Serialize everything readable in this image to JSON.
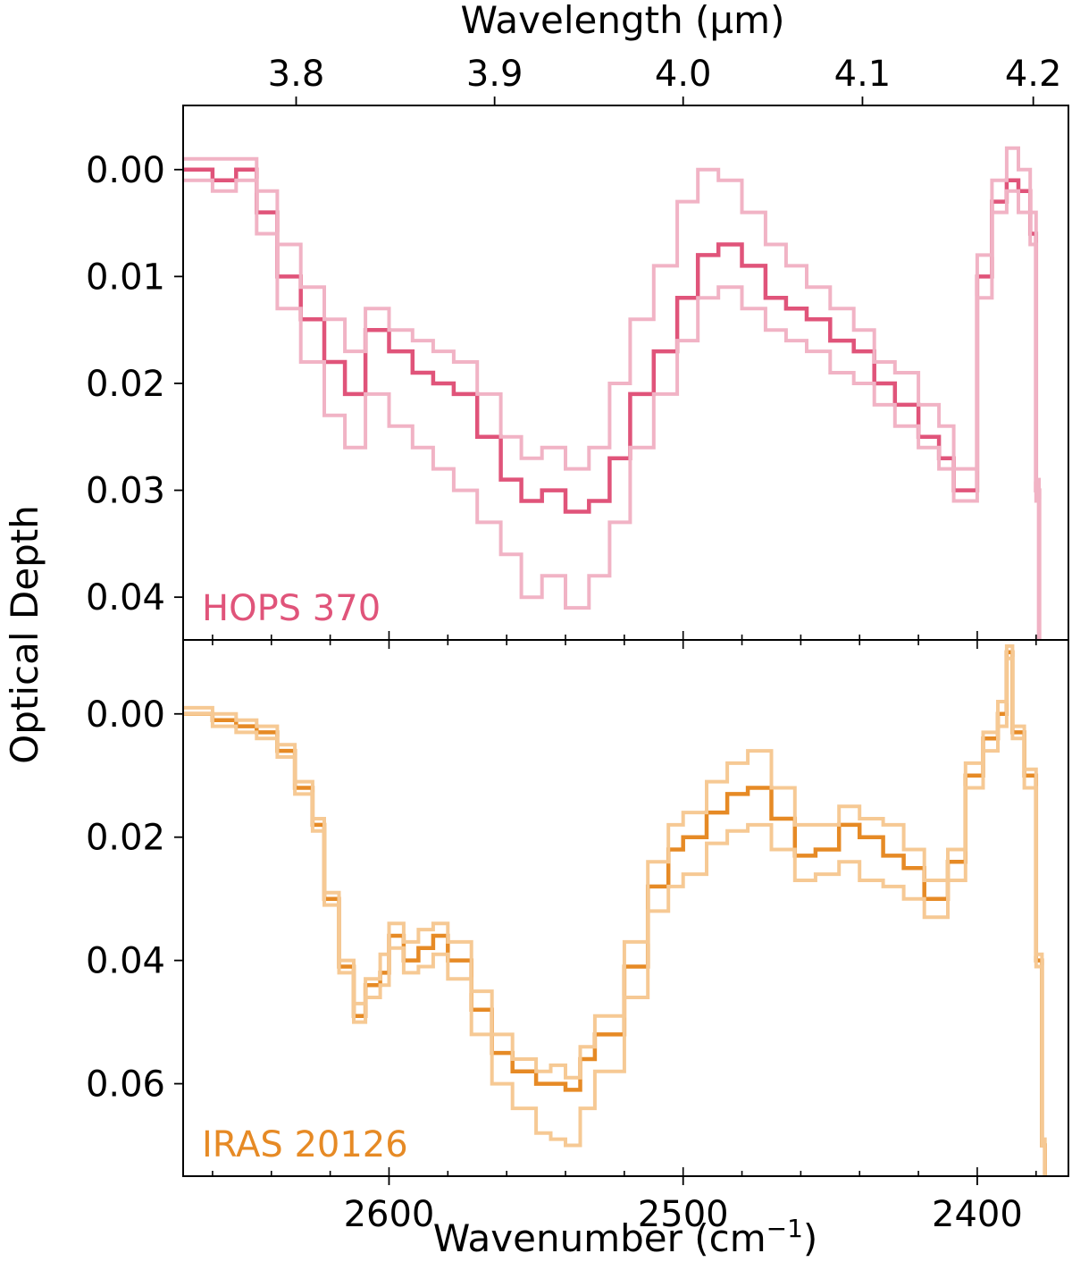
{
  "figure": {
    "ylabel": "Optical Depth",
    "top_xlabel": "Wavelength (µm)",
    "bottom_xlabel_prefix": "Wavenumber (cm",
    "bottom_xlabel_sup": "−1",
    "bottom_xlabel_suffix": ")"
  },
  "chart_data": [
    {
      "type": "line",
      "panel_label": "HOPS 370",
      "xlabel": "Wavenumber (cm−1)",
      "top_xlabel": "Wavelength (µm)",
      "ylabel": "Optical Depth",
      "x_reversed": true,
      "y_inverted": true,
      "xlim": [
        2670,
        2369
      ],
      "ylim": [
        0.044,
        -0.006
      ],
      "x_ticks": [
        2600,
        2500,
        2400
      ],
      "x_tick_labels": [
        "2600",
        "2500",
        "2400"
      ],
      "top_ticks": [
        3.8,
        3.9,
        4.0,
        4.1,
        4.2
      ],
      "top_tick_labels": [
        "3.8",
        "3.9",
        "4.0",
        "4.1",
        "4.2"
      ],
      "y_ticks": [
        0.0,
        0.01,
        0.02,
        0.03,
        0.04
      ],
      "y_tick_labels": [
        "0.00",
        "0.01",
        "0.02",
        "0.03",
        "0.04"
      ],
      "colors": {
        "main": "#e0547a",
        "band": "#f1b3c5"
      },
      "x": [
        2670,
        2660,
        2652,
        2645,
        2638,
        2630,
        2622,
        2615,
        2608,
        2600,
        2592,
        2585,
        2578,
        2570,
        2562,
        2555,
        2548,
        2540,
        2532,
        2525,
        2518,
        2510,
        2502,
        2495,
        2488,
        2480,
        2472,
        2465,
        2458,
        2450,
        2442,
        2435,
        2428,
        2420,
        2413,
        2408,
        2400,
        2395,
        2390,
        2386,
        2382,
        2380,
        2379
      ],
      "series": [
        {
          "role": "main",
          "values": [
            0.0,
            0.001,
            0.0,
            0.004,
            0.01,
            0.014,
            0.018,
            0.021,
            0.015,
            0.017,
            0.019,
            0.02,
            0.021,
            0.025,
            0.029,
            0.031,
            0.03,
            0.032,
            0.031,
            0.027,
            0.021,
            0.017,
            0.012,
            0.008,
            0.007,
            0.009,
            0.012,
            0.013,
            0.014,
            0.016,
            0.017,
            0.02,
            0.022,
            0.025,
            0.027,
            0.03,
            0.01,
            0.003,
            0.001,
            0.002,
            0.006,
            0.03,
            0.045
          ]
        },
        {
          "role": "upper",
          "values": [
            -0.001,
            -0.001,
            -0.001,
            0.002,
            0.007,
            0.011,
            0.014,
            0.017,
            0.013,
            0.015,
            0.016,
            0.017,
            0.018,
            0.021,
            0.025,
            0.027,
            0.026,
            0.028,
            0.026,
            0.02,
            0.014,
            0.009,
            0.003,
            0.0,
            0.001,
            0.004,
            0.007,
            0.009,
            0.011,
            0.013,
            0.015,
            0.018,
            0.019,
            0.022,
            0.024,
            0.028,
            0.008,
            0.001,
            -0.002,
            0.0,
            0.004,
            0.029,
            0.045
          ]
        },
        {
          "role": "lower",
          "values": [
            0.001,
            0.002,
            0.001,
            0.006,
            0.013,
            0.018,
            0.023,
            0.026,
            0.021,
            0.024,
            0.026,
            0.028,
            0.03,
            0.033,
            0.036,
            0.04,
            0.038,
            0.041,
            0.038,
            0.033,
            0.026,
            0.021,
            0.016,
            0.012,
            0.011,
            0.013,
            0.015,
            0.016,
            0.017,
            0.019,
            0.02,
            0.022,
            0.024,
            0.026,
            0.028,
            0.031,
            0.012,
            0.004,
            0.002,
            0.004,
            0.007,
            0.031,
            0.045
          ]
        }
      ]
    },
    {
      "type": "line",
      "panel_label": "IRAS 20126",
      "xlabel": "Wavenumber (cm−1)",
      "ylabel": "Optical Depth",
      "x_reversed": true,
      "y_inverted": true,
      "xlim": [
        2670,
        2369
      ],
      "ylim": [
        0.075,
        -0.012
      ],
      "x_ticks": [
        2600,
        2500,
        2400
      ],
      "x_tick_labels": [
        "2600",
        "2500",
        "2400"
      ],
      "y_ticks": [
        0.0,
        0.02,
        0.04,
        0.06
      ],
      "y_tick_labels": [
        "0.00",
        "0.02",
        "0.04",
        "0.06"
      ],
      "colors": {
        "main": "#e68a25",
        "band": "#f6c994"
      },
      "x": [
        2670,
        2660,
        2652,
        2645,
        2638,
        2632,
        2626,
        2622,
        2617,
        2612,
        2608,
        2603,
        2600,
        2595,
        2590,
        2585,
        2580,
        2572,
        2565,
        2558,
        2550,
        2545,
        2540,
        2535,
        2530,
        2520,
        2512,
        2505,
        2500,
        2492,
        2485,
        2478,
        2470,
        2462,
        2455,
        2447,
        2440,
        2432,
        2425,
        2418,
        2410,
        2404,
        2398,
        2393,
        2390,
        2388,
        2384,
        2380,
        2378,
        2377
      ],
      "series": [
        {
          "role": "main",
          "values": [
            0.0,
            0.001,
            0.002,
            0.003,
            0.006,
            0.012,
            0.018,
            0.03,
            0.041,
            0.049,
            0.044,
            0.042,
            0.036,
            0.04,
            0.038,
            0.036,
            0.04,
            0.048,
            0.055,
            0.058,
            0.06,
            0.06,
            0.061,
            0.056,
            0.052,
            0.041,
            0.028,
            0.022,
            0.02,
            0.016,
            0.013,
            0.012,
            0.017,
            0.023,
            0.022,
            0.018,
            0.02,
            0.023,
            0.025,
            0.03,
            0.024,
            0.01,
            0.004,
            0.0,
            -0.01,
            0.003,
            0.01,
            0.04,
            0.07,
            0.078
          ]
        },
        {
          "role": "upper",
          "values": [
            -0.001,
            0.0,
            0.001,
            0.002,
            0.005,
            0.011,
            0.017,
            0.029,
            0.04,
            0.047,
            0.043,
            0.039,
            0.034,
            0.037,
            0.035,
            0.034,
            0.037,
            0.045,
            0.052,
            0.056,
            0.058,
            0.057,
            0.059,
            0.054,
            0.049,
            0.037,
            0.024,
            0.018,
            0.016,
            0.011,
            0.008,
            0.006,
            0.012,
            0.018,
            0.018,
            0.015,
            0.017,
            0.018,
            0.022,
            0.027,
            0.022,
            0.008,
            0.003,
            -0.002,
            -0.011,
            0.002,
            0.009,
            0.039,
            0.069,
            0.078
          ]
        },
        {
          "role": "lower",
          "values": [
            0.0,
            0.002,
            0.003,
            0.004,
            0.007,
            0.013,
            0.019,
            0.031,
            0.042,
            0.05,
            0.046,
            0.044,
            0.038,
            0.042,
            0.041,
            0.039,
            0.043,
            0.052,
            0.06,
            0.064,
            0.068,
            0.069,
            0.07,
            0.064,
            0.058,
            0.046,
            0.032,
            0.028,
            0.026,
            0.021,
            0.019,
            0.018,
            0.022,
            0.027,
            0.026,
            0.024,
            0.027,
            0.028,
            0.03,
            0.033,
            0.027,
            0.012,
            0.006,
            0.002,
            -0.009,
            0.004,
            0.012,
            0.041,
            0.07,
            0.078
          ]
        }
      ]
    }
  ]
}
